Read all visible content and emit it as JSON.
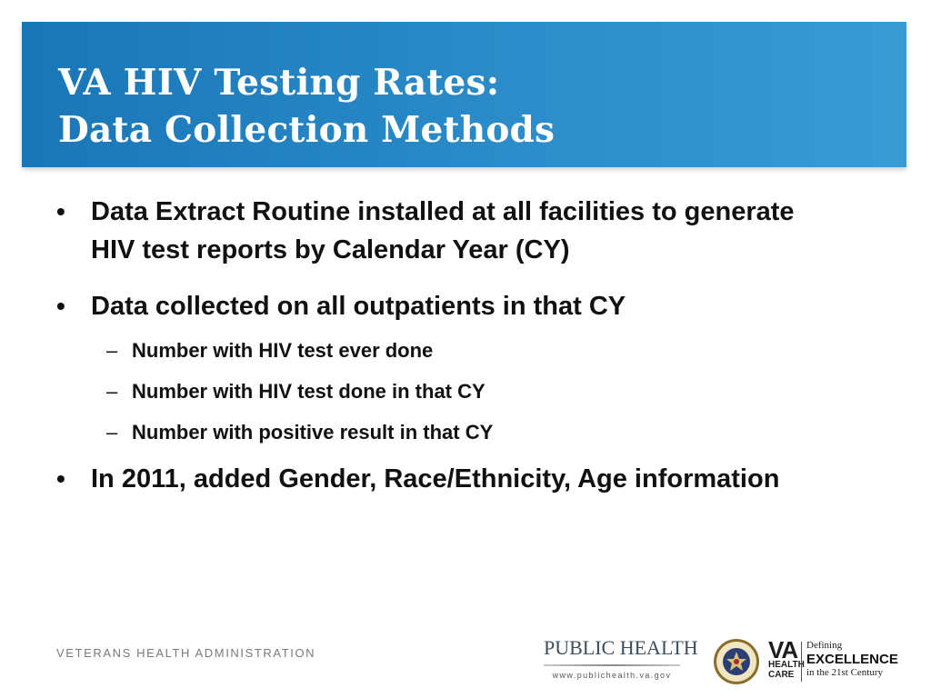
{
  "slide": {
    "title_line1": "VA HIV Testing Rates:",
    "title_line2": "Data Collection Methods",
    "bullets": [
      {
        "text": "Data Extract Routine installed at all facilities to generate HIV test reports by Calendar Year (CY)"
      },
      {
        "text": "Data collected on all outpatients in that CY",
        "sub": [
          "Number with HIV test ever done",
          "Number with HIV test done in that CY",
          "Number with positive result in that CY"
        ]
      },
      {
        "text": "In 2011, added Gender, Race/Ethnicity, Age information"
      }
    ],
    "bullet_glyph": "•",
    "dash_glyph": "–"
  },
  "footer": {
    "org": "VETERANS HEALTH ADMINISTRATION",
    "public_health_logo": {
      "name": "PUBLIC HEALTH",
      "url": "www.publichealth.va.gov"
    },
    "seal_icon": "department-of-veterans-affairs-seal-icon",
    "va_logo": {
      "va": "VA",
      "health": "HEALTH",
      "care": "CARE",
      "defining": "Defining",
      "excellence": "EXCELLENCE",
      "century": "in the 21st Century"
    }
  },
  "colors": {
    "banner": "#2383c3",
    "title_text": "#ffffff",
    "body_text": "#111111",
    "footer_text": "#7a7a7a"
  }
}
